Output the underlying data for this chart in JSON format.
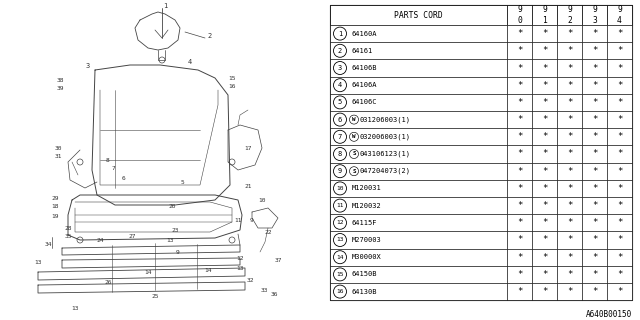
{
  "bg_color": "#ffffff",
  "header_row": [
    "PARTS CORD",
    "9\n0",
    "9\n1",
    "9\n2",
    "9\n3",
    "9\n4"
  ],
  "rows": [
    [
      "1",
      "64160A",
      "*",
      "*",
      "*",
      "*",
      "*"
    ],
    [
      "2",
      "64161",
      "*",
      "*",
      "*",
      "*",
      "*"
    ],
    [
      "3",
      "64106B",
      "*",
      "*",
      "*",
      "*",
      "*"
    ],
    [
      "4",
      "64106A",
      "*",
      "*",
      "*",
      "*",
      "*"
    ],
    [
      "5",
      "64106C",
      "*",
      "*",
      "*",
      "*",
      "*"
    ],
    [
      "6",
      "W031206003(1)",
      "*",
      "*",
      "*",
      "*",
      "*"
    ],
    [
      "7",
      "W032006003(1)",
      "*",
      "*",
      "*",
      "*",
      "*"
    ],
    [
      "8",
      "S043106123(1)",
      "*",
      "*",
      "*",
      "*",
      "*"
    ],
    [
      "9",
      "S047204073(2)",
      "*",
      "*",
      "*",
      "*",
      "*"
    ],
    [
      "10",
      "M120031",
      "*",
      "*",
      "*",
      "*",
      "*"
    ],
    [
      "11",
      "M120032",
      "*",
      "*",
      "*",
      "*",
      "*"
    ],
    [
      "12",
      "64115F",
      "*",
      "*",
      "*",
      "*",
      "*"
    ],
    [
      "13",
      "M270003",
      "*",
      "*",
      "*",
      "*",
      "*"
    ],
    [
      "14",
      "M30000X",
      "*",
      "*",
      "*",
      "*",
      "*"
    ],
    [
      "15",
      "64150B",
      "*",
      "*",
      "*",
      "*",
      "*"
    ],
    [
      "16",
      "64130B",
      "*",
      "*",
      "*",
      "*",
      "*"
    ]
  ],
  "row6_prefix": "W",
  "row7_prefix": "W",
  "row8_prefix": "S",
  "row9_prefix": "S",
  "footer_text": "A640B00150"
}
